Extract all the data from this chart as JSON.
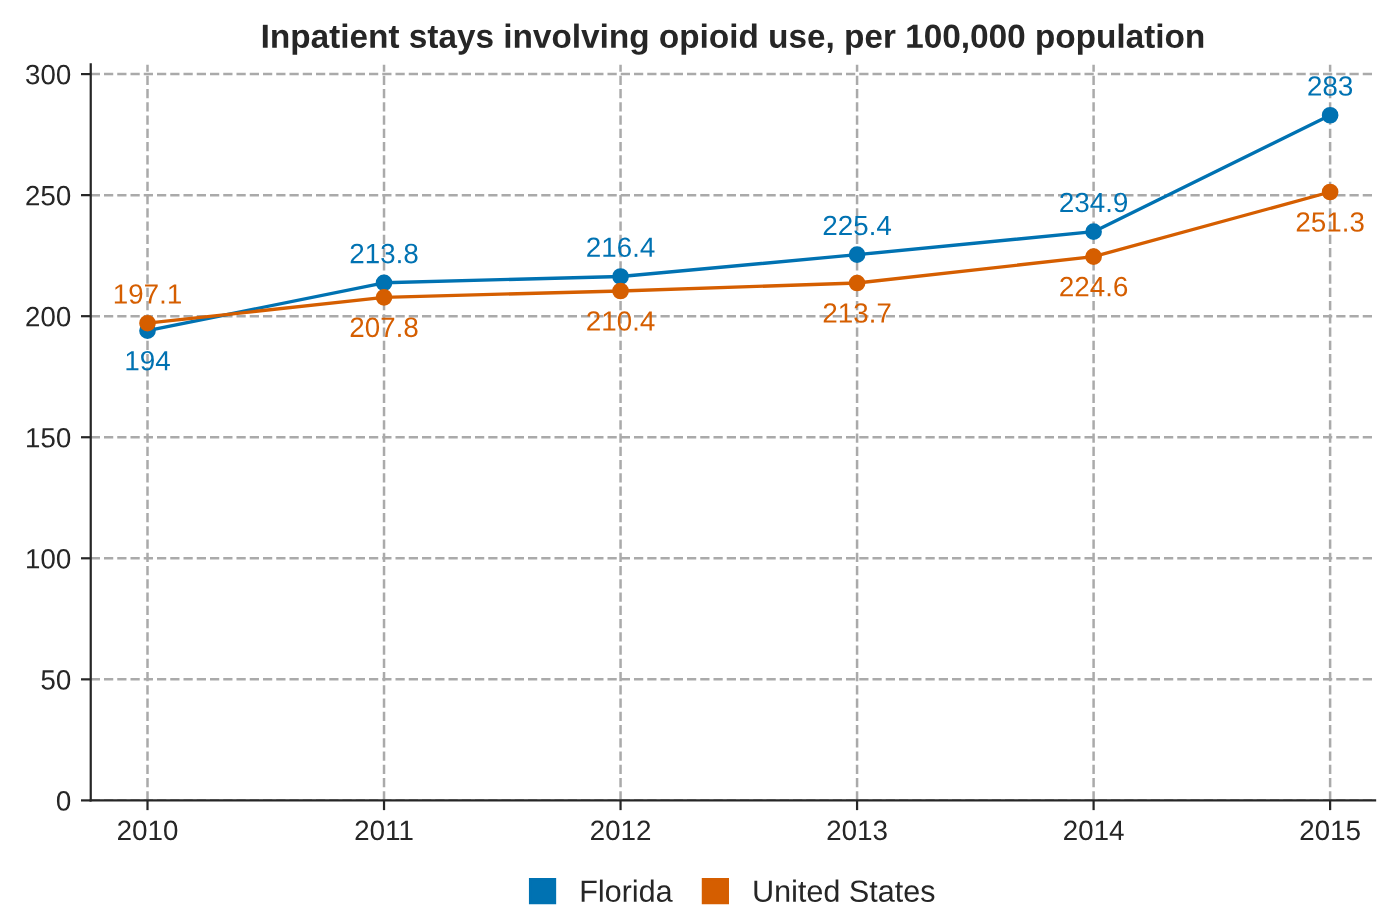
{
  "chart_data": {
    "type": "line",
    "title": "Inpatient stays involving opioid use, per 100,000 population",
    "x": [
      2010,
      2011,
      2012,
      2013,
      2014,
      2015
    ],
    "series": [
      {
        "name": "Florida",
        "color": "#0072b2",
        "values": [
          194,
          213.8,
          216.4,
          225.4,
          234.9,
          283
        ]
      },
      {
        "name": "United States",
        "color": "#d55e00",
        "values": [
          197.1,
          207.8,
          210.4,
          213.7,
          224.6,
          251.3
        ]
      }
    ],
    "xlim": [
      2009.76,
      2015.19
    ],
    "xticks": [
      2010,
      2011,
      2012,
      2013,
      2014,
      2015
    ],
    "ylim": [
      0,
      304
    ],
    "yticks": [
      0,
      50,
      100,
      150,
      200,
      250,
      300
    ],
    "grid": true,
    "legend": "bottom",
    "marker": "circle",
    "line_style": "solid",
    "data_labels": true
  }
}
